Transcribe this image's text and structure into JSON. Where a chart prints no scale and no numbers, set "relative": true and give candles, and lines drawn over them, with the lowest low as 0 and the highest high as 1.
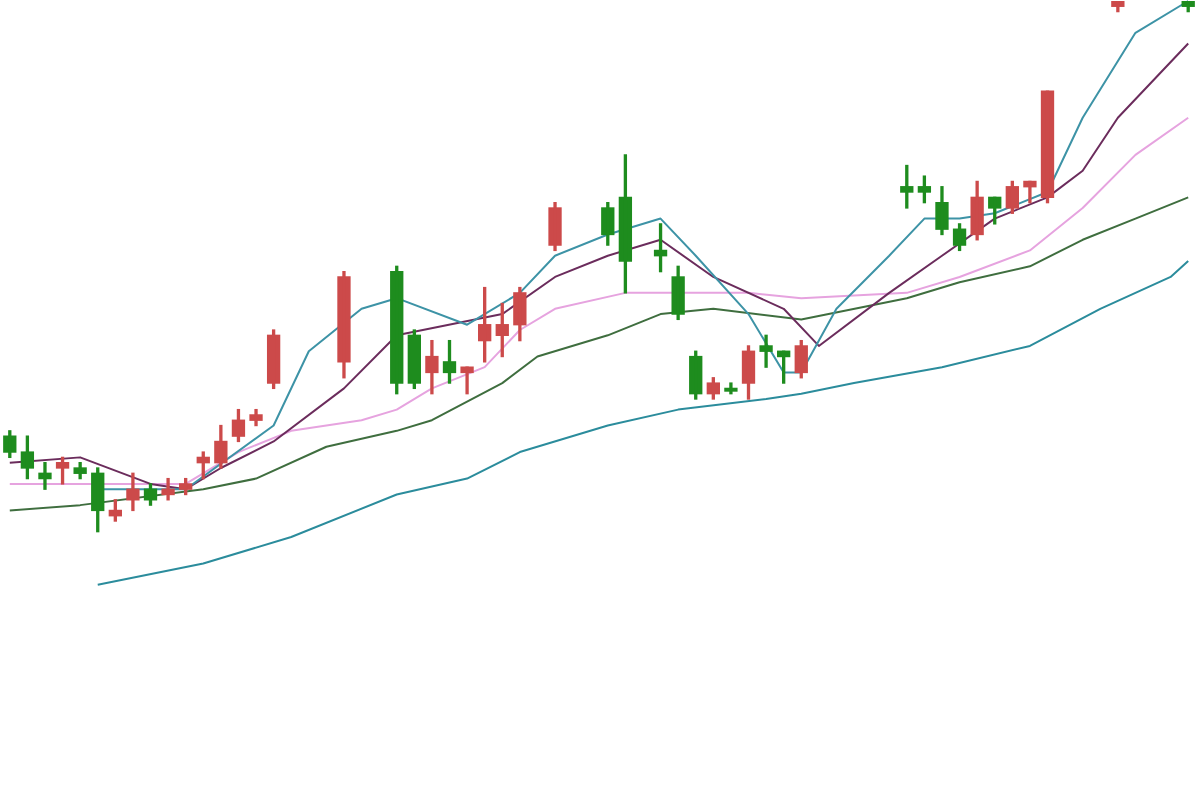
{
  "chart_data": {
    "type": "candlestick",
    "relative": true,
    "marker": "none",
    "line_style": "solid",
    "categories": [
      null,
      null,
      null,
      null,
      null,
      null,
      null,
      null,
      null,
      null,
      null,
      null,
      null,
      null,
      null,
      null,
      null,
      null,
      null,
      null,
      null,
      null,
      null,
      null,
      null,
      null,
      null,
      null,
      null,
      null,
      null,
      null,
      null,
      null,
      null,
      null,
      null,
      null,
      null,
      null,
      null,
      null,
      null,
      null,
      null,
      null,
      null,
      null,
      null,
      null,
      null,
      null,
      null,
      null,
      null,
      null,
      null,
      null,
      null,
      null,
      null,
      null,
      null,
      null,
      null,
      null,
      null,
      null
    ],
    "ohlc": [
      [
        0.18,
        0.19,
        0.14,
        0.15
      ],
      [
        0.15,
        0.18,
        0.1,
        0.12
      ],
      [
        0.11,
        0.13,
        0.08,
        0.1
      ],
      [
        0.12,
        0.14,
        0.09,
        0.13
      ],
      [
        0.12,
        0.13,
        0.1,
        0.11
      ],
      [
        0.11,
        0.12,
        0,
        0.04
      ],
      [
        0.03,
        0.06,
        0.02,
        0.04
      ],
      [
        0.06,
        0.11,
        0.04,
        0.08
      ],
      [
        0.08,
        0.09,
        0.05,
        0.06
      ],
      [
        0.07,
        0.1,
        0.06,
        0.08
      ],
      [
        0.08,
        0.1,
        0.07,
        0.09
      ],
      [
        0.13,
        0.15,
        0.1,
        0.14
      ],
      [
        0.13,
        0.2,
        0.12,
        0.17
      ],
      [
        0.18,
        0.23,
        0.17,
        0.21
      ],
      [
        0.21,
        0.23,
        0.2,
        0.22
      ],
      [
        0.28,
        0.38,
        0.27,
        0.37
      ],
      null,
      null,
      null,
      [
        0.32,
        0.49,
        0.29,
        0.48
      ],
      null,
      null,
      [
        0.49,
        0.5,
        0.26,
        0.28
      ],
      [
        0.37,
        0.38,
        0.27,
        0.28
      ],
      [
        0.3,
        0.36,
        0.26,
        0.33
      ],
      [
        0.32,
        0.36,
        0.28,
        0.3
      ],
      [
        0.3,
        0.31,
        0.26,
        0.31
      ],
      [
        0.36,
        0.46,
        0.32,
        0.39
      ],
      [
        0.37,
        0.43,
        0.33,
        0.39
      ],
      [
        0.39,
        0.46,
        0.36,
        0.45
      ],
      null,
      [
        0.54,
        0.62,
        0.53,
        0.61
      ],
      null,
      null,
      [
        0.61,
        0.62,
        0.54,
        0.56
      ],
      [
        0.63,
        0.71,
        0.45,
        0.51
      ],
      null,
      [
        0.53,
        0.58,
        0.49,
        0.52
      ],
      [
        0.48,
        0.5,
        0.4,
        0.41
      ],
      [
        0.33,
        0.34,
        0.25,
        0.26
      ],
      [
        0.26,
        0.29,
        0.25,
        0.28
      ],
      [
        0.27,
        0.28,
        0.26,
        0.265
      ],
      [
        0.28,
        0.35,
        0.25,
        0.34
      ],
      [
        0.35,
        0.37,
        0.31,
        0.34
      ],
      [
        0.34,
        0.34,
        0.28,
        0.33
      ],
      [
        0.3,
        0.36,
        0.29,
        0.35
      ],
      null,
      null,
      null,
      null,
      null,
      [
        0.65,
        0.69,
        0.61,
        0.64
      ],
      [
        0.65,
        0.67,
        0.62,
        0.64
      ],
      [
        0.62,
        0.65,
        0.56,
        0.57
      ],
      [
        0.57,
        0.58,
        0.53,
        0.54
      ],
      [
        0.56,
        0.66,
        0.55,
        0.63
      ],
      [
        0.63,
        0.63,
        0.58,
        0.61
      ],
      [
        0.61,
        0.66,
        0.6,
        0.65
      ],
      [
        0.65,
        0.66,
        0.62,
        0.66
      ],
      [
        0.63,
        0.83,
        0.62,
        0.83
      ],
      null,
      null,
      null,
      [
        0.99,
        1,
        0.98,
        1
      ],
      null,
      null,
      null,
      [
        1,
        1,
        0.98,
        0.99
      ]
    ],
    "colors": [
      "#1e8c1e",
      "#1e8c1e",
      "#1e8c1e",
      "#cc4a4a",
      "#1e8c1e",
      "#1e8c1e",
      "#cc4a4a",
      "#cc4a4a",
      "#1e8c1e",
      "#cc4a4a",
      "#cc4a4a",
      "#cc4a4a",
      "#cc4a4a",
      "#cc4a4a",
      "#cc4a4a",
      "#cc4a4a",
      null,
      null,
      null,
      "#cc4a4a",
      null,
      null,
      "#1e8c1e",
      "#1e8c1e",
      "#cc4a4a",
      "#1e8c1e",
      "#cc4a4a",
      "#cc4a4a",
      "#cc4a4a",
      "#cc4a4a",
      null,
      "#cc4a4a",
      null,
      null,
      "#1e8c1e",
      "#1e8c1e",
      null,
      "#1e8c1e",
      "#1e8c1e",
      "#1e8c1e",
      "#cc4a4a",
      "#1e8c1e",
      "#cc4a4a",
      "#1e8c1e",
      "#1e8c1e",
      "#cc4a4a",
      null,
      null,
      null,
      null,
      null,
      "#1e8c1e",
      "#1e8c1e",
      "#1e8c1e",
      "#1e8c1e",
      "#cc4a4a",
      "#1e8c1e",
      "#cc4a4a",
      "#cc4a4a",
      "#cc4a4a",
      null,
      null,
      null,
      "#cc4a4a",
      null,
      null,
      null,
      "#1e8c1e"
    ],
    "series": [
      {
        "type": "line",
        "color": "#3d93a6",
        "values": [
          null,
          null,
          null,
          null,
          null,
          0.08,
          null,
          null,
          null,
          null,
          0.08,
          null,
          null,
          null,
          null,
          0.2,
          null,
          0.34,
          null,
          null,
          0.42,
          null,
          0.44,
          null,
          null,
          null,
          0.39,
          null,
          null,
          0.45,
          null,
          0.52,
          null,
          null,
          0.56,
          null,
          null,
          0.59,
          null,
          0.52,
          null,
          null,
          0.41,
          null,
          0.3,
          0.3,
          null,
          0.42,
          null,
          null,
          0.52,
          null,
          0.59,
          null,
          0.59,
          null,
          0.6,
          null,
          null,
          0.64,
          null,
          0.78,
          null,
          null,
          0.94,
          null,
          null,
          1
        ]
      },
      {
        "type": "line",
        "color": "#6b2c5c",
        "values": [
          0.13,
          null,
          null,
          null,
          0.14,
          null,
          null,
          null,
          0.09,
          null,
          0.08,
          null,
          0.12,
          null,
          null,
          0.17,
          null,
          null,
          null,
          0.27,
          null,
          null,
          0.37,
          null,
          null,
          null,
          null,
          null,
          0.41,
          null,
          null,
          0.48,
          null,
          null,
          0.52,
          null,
          null,
          0.55,
          null,
          null,
          0.48,
          null,
          null,
          null,
          0.42,
          null,
          0.35,
          null,
          null,
          null,
          0.45,
          null,
          null,
          0.52,
          null,
          null,
          0.59,
          null,
          null,
          0.63,
          null,
          0.68,
          null,
          0.78,
          null,
          null,
          null,
          0.92
        ]
      },
      {
        "type": "line",
        "color": "#e6a3df",
        "values": [
          0.09,
          null,
          null,
          null,
          0.09,
          null,
          null,
          null,
          null,
          null,
          0.09,
          null,
          null,
          0.15,
          null,
          null,
          0.19,
          null,
          null,
          null,
          0.21,
          null,
          0.23,
          null,
          0.27,
          null,
          null,
          0.31,
          null,
          0.38,
          null,
          0.42,
          null,
          null,
          null,
          0.45,
          null,
          null,
          0.45,
          null,
          null,
          null,
          0.45,
          null,
          null,
          0.44,
          null,
          null,
          null,
          null,
          null,
          0.45,
          null,
          null,
          0.48,
          null,
          null,
          null,
          0.53,
          null,
          null,
          0.61,
          null,
          null,
          0.71,
          null,
          null,
          0.78
        ]
      },
      {
        "type": "line",
        "color": "#3f6e3f",
        "values": [
          0.04,
          null,
          null,
          null,
          0.05,
          null,
          null,
          null,
          null,
          null,
          null,
          0.08,
          null,
          null,
          0.1,
          null,
          null,
          null,
          0.16,
          null,
          null,
          null,
          0.19,
          null,
          0.21,
          null,
          null,
          null,
          0.28,
          null,
          0.33,
          null,
          null,
          null,
          0.37,
          null,
          null,
          0.41,
          null,
          null,
          0.42,
          null,
          null,
          null,
          null,
          0.4,
          null,
          null,
          null,
          null,
          null,
          0.44,
          null,
          null,
          0.47,
          null,
          null,
          null,
          0.5,
          null,
          null,
          0.55,
          null,
          null,
          0.59,
          null,
          null,
          0.63
        ]
      },
      {
        "type": "line",
        "color": "#2b8c9c",
        "values": [
          null,
          null,
          null,
          null,
          null,
          -0.1,
          null,
          null,
          null,
          null,
          null,
          -0.06,
          null,
          null,
          null,
          null,
          -0.01,
          null,
          null,
          null,
          null,
          null,
          0.07,
          null,
          null,
          null,
          0.1,
          null,
          null,
          0.15,
          null,
          null,
          null,
          null,
          0.2,
          null,
          null,
          null,
          0.23,
          null,
          null,
          null,
          null,
          0.25,
          null,
          0.26,
          null,
          null,
          0.28,
          null,
          null,
          null,
          null,
          0.31,
          null,
          null,
          null,
          null,
          0.35,
          null,
          null,
          null,
          0.42,
          null,
          null,
          null,
          0.48,
          0.51
        ]
      }
    ]
  }
}
